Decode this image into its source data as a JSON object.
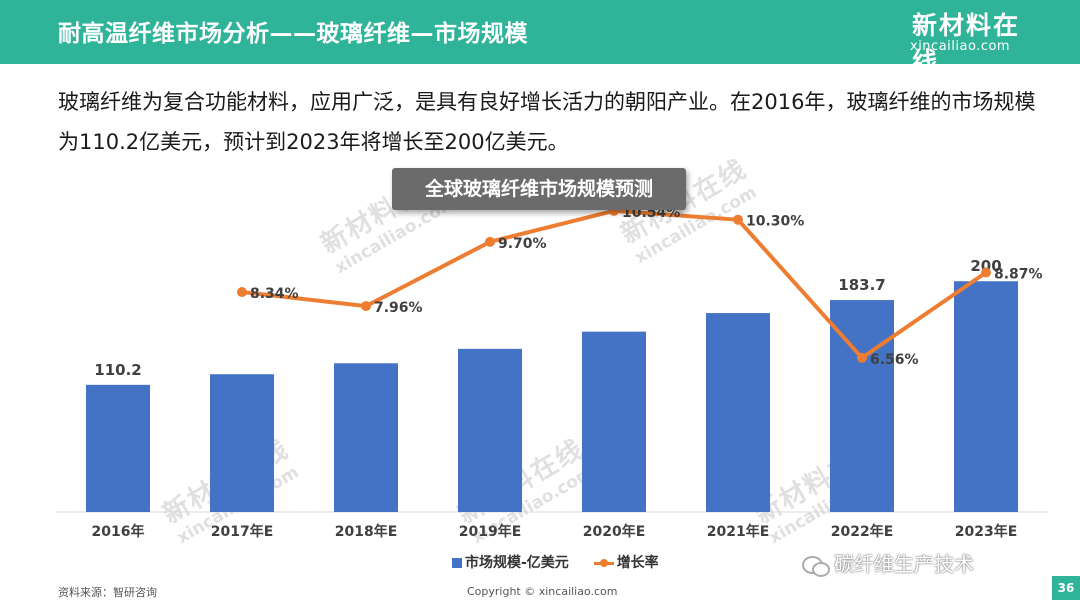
{
  "header": {
    "title": "耐高温纤维市场分析——玻璃纤维—市场规模",
    "logo_cn": "新材料在线",
    "logo_en": "xincailiao.com"
  },
  "intro": "玻璃纤维为复合功能材料，应用广泛，是具有良好增长活力的朝阳产业。在2016年，玻璃纤维的市场规模为110.2亿美元，预计到2023年将增长至200亿美元。",
  "watermark": {
    "cn": "新材料在线",
    "en": "xincailiao.com"
  },
  "chart_data": {
    "type": "bar",
    "title": "全球玻璃纤维市场规模预测",
    "categories": [
      "2016年",
      "2017年E",
      "2018年E",
      "2019年E",
      "2020年E",
      "2021年E",
      "2022年E",
      "2023年E"
    ],
    "series": [
      {
        "name": "市场规模-亿美元",
        "type": "bar",
        "color": "#4472c4",
        "values": [
          110.2,
          119.4,
          128.9,
          141.4,
          156.3,
          172.4,
          183.7,
          200
        ],
        "labels": [
          "110.2",
          "",
          "",
          "",
          "",
          "",
          "183.7",
          "200"
        ]
      },
      {
        "name": "增长率",
        "type": "line",
        "color": "#ed7d31",
        "values": [
          null,
          8.34,
          7.96,
          9.7,
          10.54,
          10.3,
          6.56,
          8.87
        ],
        "labels": [
          "",
          "8.34%",
          "7.96%",
          "9.70%",
          "10.54%",
          "10.30%",
          "6.56%",
          "8.87%"
        ]
      }
    ],
    "bar_ylim": [
      0,
      260
    ],
    "line_ylim": [
      0,
      13
    ],
    "grid": false,
    "legend_position": "bottom"
  },
  "footer": {
    "source": "资料来源：智研咨询",
    "copyright": "Copyright © xincailiao.com",
    "wechat": "碳纤维生产技术",
    "page": "36"
  }
}
